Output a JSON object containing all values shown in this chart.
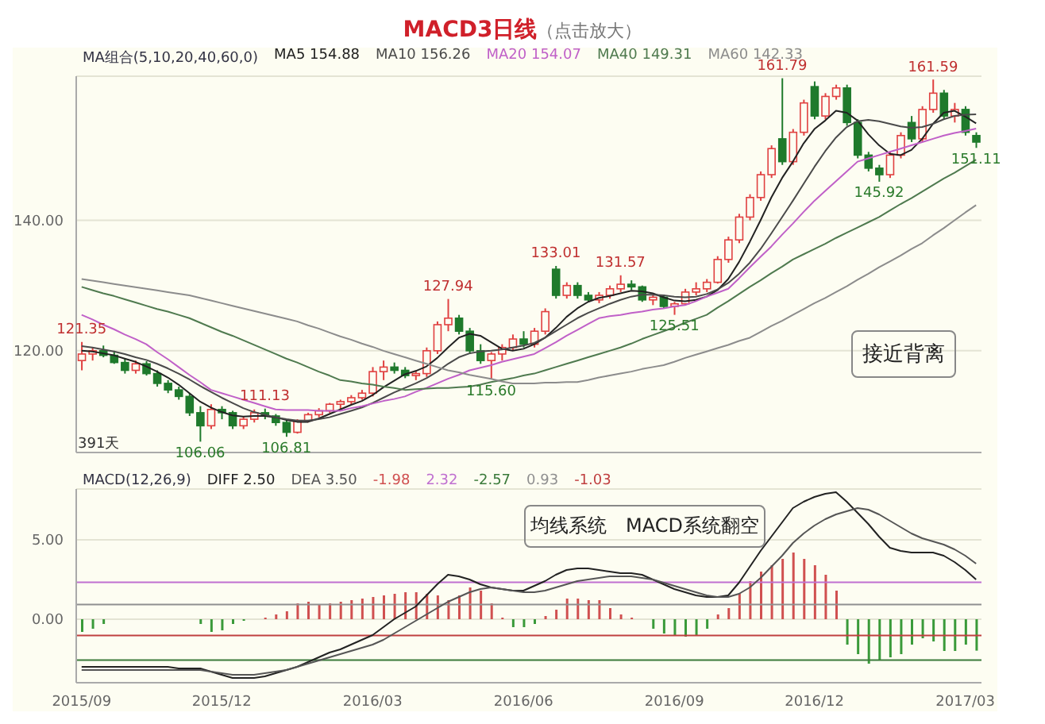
{
  "chart_data": [
    {
      "type": "candlestick",
      "title": "MACD3日线",
      "subtitle": "（点击放大）",
      "categories": [
        "2015/09",
        null,
        null,
        null,
        null,
        null,
        null,
        null,
        null,
        null,
        null,
        null,
        null,
        "2015/12",
        null,
        null,
        null,
        null,
        null,
        null,
        null,
        null,
        null,
        null,
        null,
        null,
        null,
        "2016/03",
        null,
        null,
        null,
        null,
        null,
        null,
        null,
        null,
        null,
        null,
        null,
        null,
        null,
        "2016/06",
        null,
        null,
        null,
        null,
        null,
        null,
        null,
        null,
        null,
        null,
        null,
        null,
        null,
        "2016/09",
        null,
        null,
        null,
        null,
        null,
        null,
        null,
        null,
        null,
        null,
        null,
        null,
        "2016/12",
        null,
        null,
        null,
        null,
        null,
        null,
        null,
        null,
        null,
        null,
        null,
        null,
        null,
        "2017/03",
        null
      ],
      "ohlc": [
        [
          118.5,
          121.35,
          117,
          119.5
        ],
        [
          119.5,
          120.5,
          118.5,
          120
        ],
        [
          120,
          120.8,
          119,
          119.3
        ],
        [
          119.3,
          120,
          118,
          118.2
        ],
        [
          118.2,
          118.8,
          116.5,
          117
        ],
        [
          117,
          118.5,
          116.5,
          118
        ],
        [
          118,
          118.4,
          116.2,
          116.5
        ],
        [
          116.5,
          117,
          114.5,
          115
        ],
        [
          115,
          115.5,
          113.5,
          114
        ],
        [
          114,
          114.5,
          112.5,
          113
        ],
        [
          113,
          113.5,
          110,
          110.5
        ],
        [
          110.5,
          111.5,
          106.06,
          108.5
        ],
        [
          108.5,
          111.8,
          108,
          111
        ],
        [
          111,
          111.5,
          109.5,
          110.5
        ],
        [
          110.5,
          110.8,
          108,
          108.5
        ],
        [
          108.5,
          110,
          108,
          109.5
        ],
        [
          109.5,
          111,
          109,
          110.5
        ],
        [
          110.5,
          111.13,
          109.5,
          110
        ],
        [
          110,
          110.3,
          108.5,
          109
        ],
        [
          109,
          109.3,
          106.81,
          107.5
        ],
        [
          107.5,
          109.5,
          107.3,
          109.3
        ],
        [
          109.3,
          110.5,
          109,
          110.2
        ],
        [
          110.2,
          111.2,
          109.8,
          110.8
        ],
        [
          110.8,
          112,
          110.5,
          111.8
        ],
        [
          111.8,
          112.5,
          111,
          112.2
        ],
        [
          112.2,
          113.2,
          111.8,
          112.8
        ],
        [
          112.8,
          114,
          112.5,
          113.5
        ],
        [
          113.5,
          117.5,
          113,
          116.8
        ],
        [
          116.8,
          118.5,
          115.5,
          117.5
        ],
        [
          117.5,
          118.2,
          116.5,
          117
        ],
        [
          117,
          117.5,
          115.8,
          116.2
        ],
        [
          116.2,
          117,
          115.5,
          116.5
        ],
        [
          116.5,
          120.5,
          116,
          120
        ],
        [
          120,
          124.5,
          119.5,
          124
        ],
        [
          124,
          127.94,
          123,
          125
        ],
        [
          125,
          125.5,
          122.5,
          123
        ],
        [
          123,
          123.5,
          119.5,
          120
        ],
        [
          120,
          121,
          118,
          118.5
        ],
        [
          118.5,
          119.8,
          115.6,
          119.5
        ],
        [
          119.5,
          121,
          118.5,
          120.5
        ],
        [
          120.5,
          122.5,
          120,
          121.8
        ],
        [
          121.8,
          123,
          120.5,
          121
        ],
        [
          121,
          123.5,
          120.5,
          123
        ],
        [
          123,
          126.5,
          122.5,
          126
        ],
        [
          132.5,
          133.01,
          128,
          128.5
        ],
        [
          128.5,
          130.5,
          128,
          130
        ],
        [
          130,
          130.5,
          128,
          128.5
        ],
        [
          128.5,
          129,
          127.5,
          127.8
        ],
        [
          127.8,
          129,
          127.3,
          128.5
        ],
        [
          128.5,
          130,
          128,
          129.5
        ],
        [
          129.5,
          131.57,
          129,
          130.2
        ],
        [
          130.2,
          130.8,
          129.3,
          129.8
        ],
        [
          129.8,
          130,
          127.5,
          127.8
        ],
        [
          127.8,
          128.5,
          127,
          128.2
        ],
        [
          128.2,
          128.6,
          126.5,
          126.8
        ],
        [
          126.8,
          127.5,
          125.51,
          127.2
        ],
        [
          127.2,
          129.5,
          127,
          129
        ],
        [
          129,
          130.5,
          128.5,
          129.5
        ],
        [
          129.5,
          131,
          129,
          130.5
        ],
        [
          130.5,
          134.5,
          130.3,
          134
        ],
        [
          134,
          137.5,
          133.5,
          137
        ],
        [
          137,
          141,
          136.5,
          140.5
        ],
        [
          140.5,
          144,
          140,
          143.5
        ],
        [
          143.5,
          147.5,
          143,
          147
        ],
        [
          147,
          151.5,
          146.5,
          151
        ],
        [
          152.5,
          161.79,
          148.5,
          149
        ],
        [
          149,
          154,
          148.5,
          153.5
        ],
        [
          153.5,
          158.5,
          153,
          158
        ],
        [
          160.5,
          161.3,
          155.5,
          156
        ],
        [
          156,
          159.5,
          155.5,
          159
        ],
        [
          159,
          160.8,
          158.5,
          160.3
        ],
        [
          160.3,
          160.8,
          154.5,
          155
        ],
        [
          155,
          155.5,
          149.5,
          150
        ],
        [
          150,
          150.5,
          147.5,
          148
        ],
        [
          148,
          148.5,
          145.92,
          147
        ],
        [
          147,
          150.5,
          146.5,
          150
        ],
        [
          150,
          153.5,
          149.5,
          153
        ],
        [
          155,
          156,
          152,
          152.5
        ],
        [
          152.5,
          157.5,
          152,
          157
        ],
        [
          157,
          161.59,
          156.5,
          159.5
        ],
        [
          159.5,
          160,
          155.5,
          156
        ],
        [
          156,
          158,
          155,
          157
        ],
        [
          157,
          157.5,
          153,
          153.5
        ],
        [
          153,
          153.5,
          151.11,
          152
        ]
      ],
      "series": [
        {
          "name": "MA5 154.88",
          "type": "line",
          "color": "#222222",
          "values": [
            120,
            119.9,
            119.6,
            119.3,
            118.8,
            118.3,
            117.6,
            116.8,
            115.9,
            114.8,
            113.5,
            112.2,
            111.3,
            110.6,
            110.1,
            109.9,
            110,
            110,
            109.8,
            109.4,
            109.1,
            109.1,
            109.6,
            110.3,
            111,
            111.7,
            112.3,
            113.2,
            114.4,
            115.4,
            116.4,
            116.9,
            117.6,
            118.9,
            120.5,
            122,
            122.6,
            122.3,
            121.3,
            120.3,
            120,
            120.3,
            121,
            122,
            123.5,
            125.2,
            126.5,
            127.5,
            128.1,
            128.4,
            128.8,
            129.2,
            129.1,
            128.8,
            128.2,
            127.7,
            127.6,
            127.8,
            128.3,
            129.3,
            131,
            133.6,
            136.7,
            140,
            143.5,
            146.5,
            149,
            151.8,
            154,
            155.3,
            156.8,
            156.5,
            155.3,
            153.2,
            151.5,
            150.2,
            150,
            150.8,
            152.5,
            154.8,
            156.5,
            156.8,
            155.9,
            154.88
          ]
        },
        {
          "name": "MA10 156.26",
          "type": "line",
          "color": "#4a4a4a",
          "values": [
            120.7,
            120.5,
            120.2,
            119.9,
            119.5,
            119,
            118.6,
            118,
            117.3,
            116.5,
            115.6,
            114.6,
            113.7,
            112.8,
            112,
            111.2,
            110.6,
            110.2,
            109.8,
            109.5,
            109.3,
            109.3,
            109.5,
            109.8,
            110.3,
            110.8,
            111.3,
            112,
            112.8,
            113.6,
            114.3,
            115,
            115.8,
            116.8,
            118,
            119,
            119.6,
            119.9,
            120,
            120.2,
            120.5,
            120.8,
            121.2,
            122,
            123,
            124,
            125,
            125.8,
            126.5,
            127.2,
            127.8,
            128.3,
            128.6,
            128.6,
            128.5,
            128.3,
            128.2,
            128.3,
            128.7,
            129.4,
            130.4,
            131.8,
            133.5,
            135.6,
            138,
            140.5,
            143,
            145.6,
            148.2,
            150.6,
            152.7,
            154.3,
            155.2,
            155.4,
            155.2,
            154.8,
            154.4,
            154.2,
            154.3,
            154.8,
            155.5,
            156,
            156.2,
            156.26
          ]
        },
        {
          "name": "MA20 154.07",
          "type": "line",
          "color": "#c060c8",
          "values": [
            125.5,
            124.8,
            124,
            123.3,
            122.5,
            121.8,
            121,
            119.8,
            118.7,
            117.5,
            116.3,
            115.2,
            114,
            113.5,
            113,
            112.5,
            112,
            111.5,
            111,
            110.9,
            110.9,
            110.9,
            110.8,
            110.8,
            110.8,
            111.2,
            111.5,
            111.9,
            112.3,
            112.6,
            113,
            113.7,
            114.3,
            115,
            115.7,
            116.3,
            117,
            117.4,
            117.8,
            118.3,
            118.7,
            119.1,
            119.5,
            120.4,
            121.3,
            122.3,
            123.2,
            124.1,
            125,
            125.3,
            125.5,
            125.8,
            126,
            126.3,
            126.5,
            126.8,
            127,
            127.6,
            128.3,
            128.9,
            129.5,
            131.1,
            132.8,
            134.4,
            136,
            137.8,
            139.5,
            141.3,
            143,
            144.5,
            146,
            147.5,
            149,
            149.5,
            150,
            150.5,
            151,
            151.5,
            152,
            152.5,
            153,
            153.4,
            153.7,
            154.07
          ]
        },
        {
          "name": "MA40 149.31",
          "type": "line",
          "color": "#4f7a4f",
          "values": [
            129.8,
            129.3,
            128.8,
            128.4,
            127.9,
            127.4,
            126.9,
            126.4,
            126,
            125.5,
            125,
            124.3,
            123.6,
            122.9,
            122.3,
            121.6,
            120.9,
            120.2,
            119.5,
            118.8,
            118.2,
            117.5,
            116.8,
            116.2,
            115.5,
            115.3,
            115,
            114.8,
            114.5,
            114.3,
            114,
            114.1,
            114.2,
            114.3,
            114.3,
            114.4,
            114.5,
            114.8,
            115.2,
            115.5,
            115.8,
            116.2,
            116.5,
            117,
            117.5,
            118,
            118.5,
            119,
            119.5,
            120,
            120.5,
            121.1,
            121.8,
            122.4,
            123,
            123.6,
            124.3,
            124.9,
            125.5,
            126.6,
            127.6,
            128.7,
            129.8,
            130.8,
            131.9,
            132.9,
            134,
            134.8,
            135.6,
            136.4,
            137.3,
            138.1,
            138.9,
            139.7,
            140.5,
            141.5,
            142.5,
            143.4,
            144.4,
            145.4,
            146.4,
            147.3,
            148.3,
            149.31
          ]
        },
        {
          "name": "MA60 142.33",
          "type": "line",
          "color": "#8c8c8c",
          "values": [
            131,
            130.75,
            130.5,
            130.25,
            130,
            129.75,
            129.5,
            129.25,
            129,
            128.75,
            128.5,
            128.1,
            127.7,
            127.3,
            126.9,
            126.5,
            126.1,
            125.7,
            125.3,
            124.9,
            124.5,
            123.9,
            123.4,
            122.8,
            122.2,
            121.7,
            121.1,
            120.6,
            120,
            119.5,
            119,
            118.5,
            118,
            117.5,
            117,
            116.7,
            116.3,
            116,
            115.7,
            115.3,
            115,
            115,
            115,
            115.1,
            115.1,
            115.2,
            115.2,
            115.5,
            115.9,
            116.2,
            116.5,
            116.8,
            117.2,
            117.5,
            117.8,
            118.3,
            118.9,
            119.4,
            119.9,
            120.4,
            120.9,
            121.5,
            122,
            122.9,
            123.8,
            124.6,
            125.5,
            126.4,
            127.3,
            128.1,
            129,
            129.9,
            130.9,
            131.8,
            132.8,
            133.7,
            134.6,
            135.6,
            136.5,
            137.7,
            138.8,
            140,
            141.2,
            142.33
          ]
        }
      ],
      "ylim": [
        104.4,
        162.1
      ],
      "yticks": [
        {
          "value": 120,
          "label": "120.00"
        },
        {
          "value": 140,
          "label": "140.00"
        }
      ],
      "tick_labels": "y",
      "grid": "y",
      "legend": "top left",
      "legend_title": "MA组合(5,10,20,40,60,0)",
      "marker": "none",
      "annotations": [
        "391天",
        "接近背离",
        {
          "text": "121.35",
          "y": 121.35
        },
        {
          "text": "106.06",
          "y": 106.06
        },
        {
          "text": "111.13",
          "y": 111.13
        },
        {
          "text": "106.81",
          "y": 106.81
        },
        {
          "text": "127.94",
          "y": 127.94
        },
        {
          "text": "115.60",
          "y": 115.6
        },
        {
          "text": "133.01",
          "y": 133.01
        },
        {
          "text": "131.57",
          "y": 131.57
        },
        {
          "text": "125.51",
          "y": 125.51
        },
        {
          "text": "161.79",
          "y": 161.79
        },
        {
          "text": "145.92",
          "y": 145.92
        },
        {
          "text": "161.59",
          "y": 161.59
        },
        {
          "text": "151.11",
          "y": 151.11
        }
      ]
    },
    {
      "type": "line",
      "categories": [
        "2015/09",
        null,
        null,
        null,
        null,
        null,
        null,
        null,
        null,
        null,
        null,
        null,
        null,
        "2015/12",
        null,
        null,
        null,
        null,
        null,
        null,
        null,
        null,
        null,
        null,
        null,
        null,
        null,
        "2016/03",
        null,
        null,
        null,
        null,
        null,
        null,
        null,
        null,
        null,
        null,
        null,
        null,
        null,
        "2016/06",
        null,
        null,
        null,
        null,
        null,
        null,
        null,
        null,
        null,
        null,
        null,
        null,
        null,
        "2016/09",
        null,
        null,
        null,
        null,
        null,
        null,
        null,
        null,
        null,
        null,
        null,
        null,
        "2016/12",
        null,
        null,
        null,
        null,
        null,
        null,
        null,
        null,
        null,
        null,
        null,
        null,
        null,
        "2017/03",
        null
      ],
      "series": [
        {
          "name": "DIFF  2.50",
          "type": "line",
          "color": "#222222",
          "values": [
            -3,
            -3,
            -3,
            -3,
            -3,
            -3,
            -3,
            -3,
            -3,
            -3.1,
            -3.1,
            -3.1,
            -3.3,
            -3.5,
            -3.7,
            -3.7,
            -3.7,
            -3.6,
            -3.4,
            -3.2,
            -3,
            -2.7,
            -2.4,
            -2.1,
            -1.9,
            -1.6,
            -1.3,
            -1,
            -0.5,
            0,
            0.4,
            0.8,
            1.5,
            2.2,
            2.8,
            2.7,
            2.5,
            2.2,
            2,
            1.9,
            1.8,
            1.8,
            2.1,
            2.4,
            2.8,
            3.1,
            3.2,
            3.2,
            3.1,
            3,
            2.9,
            2.9,
            2.8,
            2.5,
            2.2,
            1.9,
            1.7,
            1.5,
            1.4,
            1.4,
            1.5,
            2.3,
            3.3,
            4.3,
            5.2,
            6.1,
            7,
            7.4,
            7.7,
            7.9,
            8,
            7.4,
            6.7,
            6,
            5.2,
            4.5,
            4.3,
            4.2,
            4.2,
            4.2,
            4,
            3.6,
            3.1,
            2.5
          ]
        },
        {
          "name": "DEA  3.50",
          "type": "line",
          "color": "#555555",
          "values": [
            -3.2,
            -3.2,
            -3.2,
            -3.2,
            -3.2,
            -3.2,
            -3.2,
            -3.2,
            -3.2,
            -3.2,
            -3.2,
            -3.2,
            -3.3,
            -3.4,
            -3.5,
            -3.5,
            -3.5,
            -3.4,
            -3.3,
            -3.2,
            -3,
            -2.8,
            -2.6,
            -2.4,
            -2.2,
            -2,
            -1.8,
            -1.6,
            -1.3,
            -0.9,
            -0.5,
            -0.1,
            0.3,
            0.7,
            1.1,
            1.4,
            1.7,
            1.9,
            2,
            1.9,
            1.8,
            1.7,
            1.7,
            1.8,
            2,
            2.2,
            2.4,
            2.5,
            2.6,
            2.7,
            2.7,
            2.7,
            2.6,
            2.5,
            2.3,
            2.1,
            1.9,
            1.7,
            1.5,
            1.4,
            1.4,
            1.6,
            2,
            2.6,
            3.3,
            4,
            4.8,
            5.4,
            5.9,
            6.3,
            6.6,
            6.8,
            7,
            6.9,
            6.6,
            6.2,
            5.8,
            5.4,
            5.1,
            4.9,
            4.7,
            4.4,
            4,
            3.5
          ]
        },
        {
          "name": "-1.98",
          "type": "bar",
          "color": "#d05050",
          "values": [
            -0.8,
            -0.6,
            -0.3,
            0,
            0,
            0,
            0,
            0,
            0,
            0,
            0,
            -0.3,
            -0.8,
            -0.7,
            -0.3,
            -0.1,
            0,
            0.1,
            0.3,
            0.5,
            1,
            1.1,
            0.9,
            1,
            1.1,
            1.2,
            1.3,
            1.4,
            1.5,
            1.6,
            1.7,
            1.7,
            1.6,
            1.5,
            1.2,
            1.5,
            2,
            1.8,
            1,
            0.1,
            -0.5,
            -0.5,
            -0.3,
            0.2,
            0.6,
            1.3,
            1.3,
            1.2,
            1.2,
            0.7,
            0.3,
            0.1,
            0,
            -0.6,
            -0.9,
            -1,
            -1.1,
            -1,
            -0.6,
            0.3,
            0.7,
            1.6,
            2.4,
            3,
            3.4,
            3.8,
            4.2,
            3.8,
            3.4,
            2.8,
            1.8,
            -1.6,
            -2.2,
            -2.8,
            -2.6,
            -2.4,
            -2.2,
            -1.6,
            -1.2,
            -1.4,
            -2,
            -2,
            -1.6,
            -1.98
          ],
          "colors": [
            "#3a9a3a",
            "#3a9a3a",
            "#3a9a3a",
            "#d05050",
            "#d05050",
            "#d05050",
            "#d05050",
            "#d05050",
            "#d05050",
            "#d05050",
            "#d05050",
            "#3a9a3a",
            "#3a9a3a",
            "#3a9a3a",
            "#3a9a3a",
            "#3a9a3a",
            "#d05050",
            "#d05050",
            "#d05050",
            "#d05050",
            "#d05050",
            "#d05050",
            "#d05050",
            "#d05050",
            "#d05050",
            "#d05050",
            "#d05050",
            "#d05050",
            "#d05050",
            "#d05050",
            "#d05050",
            "#d05050",
            "#d05050",
            "#d05050",
            "#d05050",
            "#d05050",
            "#d05050",
            "#d05050",
            "#d05050",
            "#d05050",
            "#3a9a3a",
            "#3a9a3a",
            "#3a9a3a",
            "#d05050",
            "#d05050",
            "#d05050",
            "#d05050",
            "#d05050",
            "#d05050",
            "#d05050",
            "#d05050",
            "#d05050",
            "#d05050",
            "#3a9a3a",
            "#3a9a3a",
            "#3a9a3a",
            "#3a9a3a",
            "#3a9a3a",
            "#3a9a3a",
            "#d05050",
            "#d05050",
            "#d05050",
            "#d05050",
            "#d05050",
            "#d05050",
            "#d05050",
            "#d05050",
            "#d05050",
            "#d05050",
            "#d05050",
            "#d05050",
            "#3a9a3a",
            "#3a9a3a",
            "#3a9a3a",
            "#3a9a3a",
            "#3a9a3a",
            "#3a9a3a",
            "#3a9a3a",
            "#3a9a3a",
            "#3a9a3a",
            "#3a9a3a",
            "#3a9a3a",
            "#3a9a3a",
            "#3a9a3a"
          ]
        }
      ],
      "ylim": [
        -4,
        8.2
      ],
      "yticks": [
        {
          "value": 0,
          "label": "0.00"
        },
        {
          "value": 5,
          "label": "5.00"
        }
      ],
      "grid": "y",
      "legend": "top left",
      "legend_title": "MACD(12,26,9)",
      "marker": "none",
      "ref_lines": [
        {
          "axis": "y",
          "value": 2.32,
          "label": "2.32",
          "color": "#c070d0"
        },
        {
          "axis": "y",
          "value": -2.57,
          "label": "-2.57",
          "color": "#3a7a3a"
        },
        {
          "axis": "y",
          "value": 0.93,
          "label": "0.93",
          "color": "#909090"
        },
        {
          "axis": "y",
          "value": -1.03,
          "label": "-1.03",
          "color": "#c04040"
        }
      ],
      "annotations": [
        "均线系统　MACD系统翻空"
      ]
    }
  ]
}
